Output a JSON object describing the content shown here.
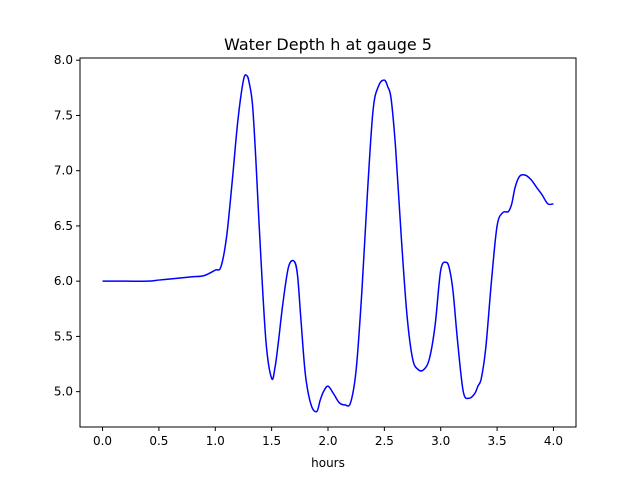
{
  "chart_data": {
    "type": "line",
    "title": "Water Depth h at gauge 5",
    "xlabel": "hours",
    "ylabel": "",
    "xlim": [
      -0.2,
      4.2
    ],
    "ylim": [
      4.68,
      8.02
    ],
    "xticks": [
      0.0,
      0.5,
      1.0,
      1.5,
      2.0,
      2.5,
      3.0,
      3.5,
      4.0
    ],
    "xtick_labels": [
      "0.0",
      "0.5",
      "1.0",
      "1.5",
      "2.0",
      "2.5",
      "3.0",
      "3.5",
      "4.0"
    ],
    "yticks": [
      5.0,
      5.5,
      6.0,
      6.5,
      7.0,
      7.5,
      8.0
    ],
    "ytick_labels": [
      "5.0",
      "5.5",
      "6.0",
      "6.5",
      "7.0",
      "7.5",
      "8.0"
    ],
    "grid": false,
    "series": [
      {
        "color": "#0000ff",
        "x": [
          0.0,
          0.2,
          0.4,
          0.5,
          0.6,
          0.7,
          0.8,
          0.9,
          1.0,
          1.05,
          1.1,
          1.15,
          1.2,
          1.25,
          1.28,
          1.3,
          1.33,
          1.36,
          1.4,
          1.45,
          1.5,
          1.53,
          1.56,
          1.6,
          1.65,
          1.7,
          1.73,
          1.76,
          1.8,
          1.85,
          1.9,
          1.93,
          1.96,
          2.0,
          2.05,
          2.1,
          2.15,
          2.2,
          2.25,
          2.3,
          2.35,
          2.4,
          2.45,
          2.5,
          2.53,
          2.56,
          2.6,
          2.65,
          2.7,
          2.75,
          2.8,
          2.85,
          2.9,
          2.95,
          3.0,
          3.05,
          3.08,
          3.11,
          3.15,
          3.2,
          3.25,
          3.3,
          3.33,
          3.36,
          3.4,
          3.45,
          3.5,
          3.55,
          3.6,
          3.63,
          3.66,
          3.7,
          3.75,
          3.8,
          3.85,
          3.9,
          3.95,
          4.0
        ],
        "y": [
          6.0,
          6.0,
          6.0,
          6.01,
          6.02,
          6.03,
          6.04,
          6.05,
          6.1,
          6.13,
          6.4,
          6.9,
          7.45,
          7.82,
          7.86,
          7.8,
          7.6,
          7.1,
          6.3,
          5.45,
          5.12,
          5.22,
          5.45,
          5.8,
          6.13,
          6.18,
          6.05,
          5.65,
          5.15,
          4.88,
          4.82,
          4.92,
          5.0,
          5.05,
          4.98,
          4.9,
          4.88,
          4.9,
          5.2,
          5.9,
          6.8,
          7.55,
          7.77,
          7.82,
          7.76,
          7.65,
          7.2,
          6.4,
          5.7,
          5.3,
          5.2,
          5.2,
          5.3,
          5.6,
          6.1,
          6.17,
          6.1,
          5.9,
          5.45,
          5.0,
          4.94,
          4.98,
          5.05,
          5.12,
          5.4,
          6.0,
          6.5,
          6.62,
          6.63,
          6.7,
          6.85,
          6.95,
          6.96,
          6.92,
          6.85,
          6.78,
          6.7,
          6.7
        ]
      }
    ]
  }
}
